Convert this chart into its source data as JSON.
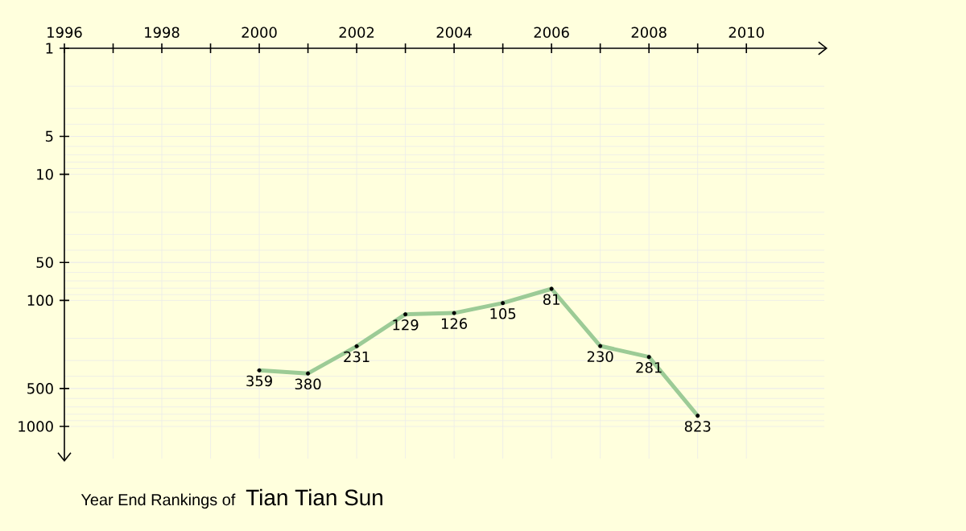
{
  "chart_data": {
    "type": "line",
    "title": "Year End Rankings of",
    "subtitle": "Tian Tian Sun",
    "x": [
      2000,
      2001,
      2002,
      2003,
      2004,
      2005,
      2006,
      2007,
      2008,
      2009
    ],
    "values": [
      359,
      380,
      231,
      129,
      126,
      105,
      81,
      230,
      281,
      823
    ],
    "color": "#9ccb96",
    "xlim": [
      1996,
      2011.6
    ],
    "xticks": [
      1996,
      {
        "value": 1997,
        "label": null
      },
      1998,
      {
        "value": 1999,
        "label": null
      },
      2000,
      {
        "value": 2001,
        "label": null
      },
      2002,
      {
        "value": 2003,
        "label": null
      },
      2004,
      {
        "value": 2005,
        "label": null
      },
      2006,
      {
        "value": 2007,
        "label": null
      },
      2008,
      {
        "value": 2009,
        "label": null
      },
      2010
    ],
    "ylim": [
      1800,
      1
    ],
    "yticks": [
      1,
      5,
      10,
      50,
      100,
      500,
      1000
    ],
    "log": "y",
    "grid": true,
    "marker": "circle",
    "line_style": "solid",
    "data_labels": true
  }
}
